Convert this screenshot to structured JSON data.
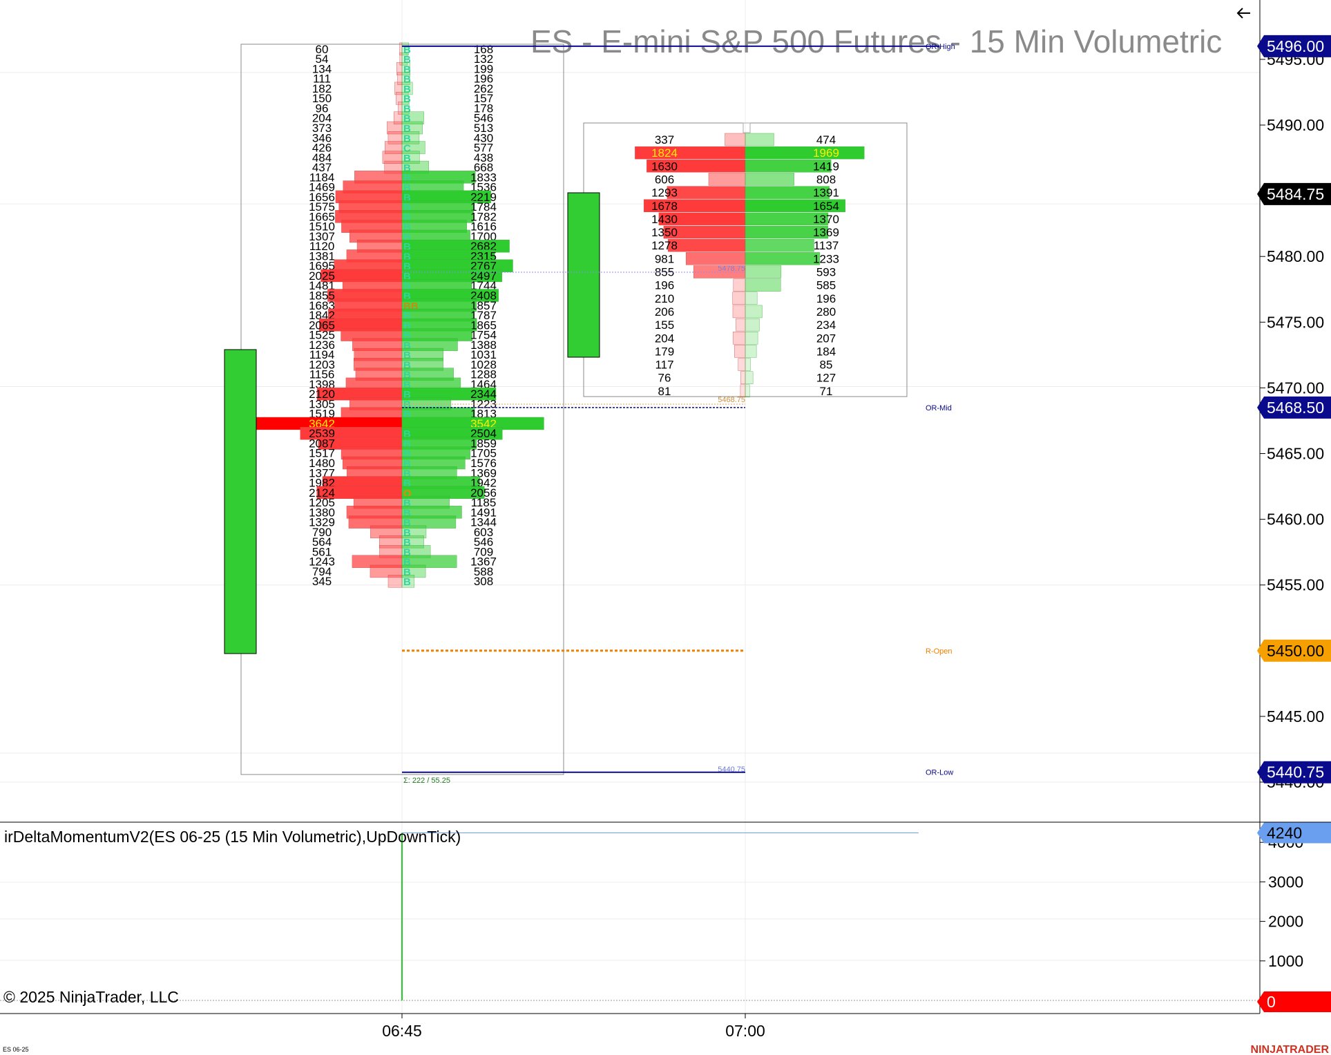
{
  "chart_title": "ES - E-mini S&P 500 Futures - 15 Min Volumetric",
  "indicator_label": "irDeltaMomentumV2(ES 06-25 (15 Min Volumetric),UpDownTick)",
  "copyright": "© 2025 NinjaTrader, LLC",
  "instrument_tag": "ES 06-25",
  "brand": "NINJATRADER",
  "back_icon": "left-arrow-icon",
  "price_axis": {
    "ticks": [
      "5495.00",
      "5490.00",
      "5480.00",
      "5475.00",
      "5470.00",
      "5465.00",
      "5460.00",
      "5455.00",
      "5445.00",
      "5440.00"
    ],
    "tick_prices": [
      5495,
      5490,
      5480,
      5475,
      5470,
      5465,
      5460,
      5455,
      5445,
      5440
    ],
    "tags": [
      {
        "label": "5496.00",
        "price": 5496.0,
        "bg": "#0a0a8c",
        "fg": "#ffffff"
      },
      {
        "label": "5484.75",
        "price": 5484.75,
        "bg": "#000000",
        "fg": "#ffffff"
      },
      {
        "label": "5468.50",
        "price": 5468.5,
        "bg": "#0a0a8c",
        "fg": "#ffffff"
      },
      {
        "label": "5450.00",
        "price": 5450.0,
        "bg": "#f5a000",
        "fg": "#000000"
      },
      {
        "label": "5440.75",
        "price": 5440.75,
        "bg": "#0a0a8c",
        "fg": "#ffffff"
      }
    ]
  },
  "time_axis": {
    "labels": [
      "06:45",
      "07:00"
    ]
  },
  "level_lines": [
    {
      "label": "OR-High",
      "price": 5496.0,
      "color": "#0a0a8c"
    },
    {
      "label": "OR-Mid",
      "price": 5468.5,
      "color": "#0a0a8c"
    },
    {
      "label": "R-Open",
      "price": 5450.0,
      "color": "#f08000"
    },
    {
      "label": "OR-Low",
      "price": 5440.75,
      "color": "#0a0a8c"
    }
  ],
  "bar1": {
    "summary": "Σ: 222 / 55.25",
    "poc_label": "5440.75",
    "rows": [
      {
        "bid": 60,
        "ask": 168,
        "m": "B"
      },
      {
        "bid": 54,
        "ask": 132,
        "m": "B"
      },
      {
        "bid": 134,
        "ask": 199,
        "m": "B"
      },
      {
        "bid": 111,
        "ask": 196,
        "m": "B"
      },
      {
        "bid": 182,
        "ask": 262,
        "m": "B"
      },
      {
        "bid": 150,
        "ask": 157,
        "m": "B"
      },
      {
        "bid": 96,
        "ask": 178,
        "m": "B"
      },
      {
        "bid": 204,
        "ask": 546,
        "m": "B"
      },
      {
        "bid": 373,
        "ask": 513,
        "m": "B"
      },
      {
        "bid": 346,
        "ask": 430,
        "m": "B"
      },
      {
        "bid": 426,
        "ask": 577,
        "m": "C"
      },
      {
        "bid": 484,
        "ask": 438,
        "m": "B"
      },
      {
        "bid": 437,
        "ask": 668,
        "m": "B"
      },
      {
        "bid": 1184,
        "ask": 1833,
        "m": "B"
      },
      {
        "bid": 1469,
        "ask": 1536,
        "m": "B"
      },
      {
        "bid": 1656,
        "ask": 2219,
        "m": "B"
      },
      {
        "bid": 1575,
        "ask": 1784,
        "m": "B"
      },
      {
        "bid": 1665,
        "ask": 1782,
        "m": "B"
      },
      {
        "bid": 1510,
        "ask": 1616,
        "m": "B"
      },
      {
        "bid": 1307,
        "ask": 1700,
        "m": "B"
      },
      {
        "bid": 1120,
        "ask": 2682,
        "m": "B"
      },
      {
        "bid": 1381,
        "ask": 2315,
        "m": "B"
      },
      {
        "bid": 1695,
        "ask": 2767,
        "m": "B"
      },
      {
        "bid": 2025,
        "ask": 2497,
        "m": "B"
      },
      {
        "bid": 1481,
        "ask": 1744,
        "m": "B"
      },
      {
        "bid": 1855,
        "ask": 2408,
        "m": "B"
      },
      {
        "bid": 1683,
        "ask": 1857,
        "m": "BB"
      },
      {
        "bid": 1842,
        "ask": 1787,
        "m": "B"
      },
      {
        "bid": 2065,
        "ask": 1865,
        "m": "B"
      },
      {
        "bid": 1525,
        "ask": 1754,
        "m": "B"
      },
      {
        "bid": 1236,
        "ask": 1388,
        "m": "B"
      },
      {
        "bid": 1194,
        "ask": 1031,
        "m": "B"
      },
      {
        "bid": 1203,
        "ask": 1028,
        "m": "B"
      },
      {
        "bid": 1156,
        "ask": 1288,
        "m": "B"
      },
      {
        "bid": 1398,
        "ask": 1464,
        "m": "B"
      },
      {
        "bid": 2120,
        "ask": 2344,
        "m": "B"
      },
      {
        "bid": 1305,
        "ask": 1223,
        "m": "B"
      },
      {
        "bid": 1519,
        "ask": 1813,
        "m": "B"
      },
      {
        "bid": 3642,
        "ask": 3542,
        "m": ""
      },
      {
        "bid": 2539,
        "ask": 2504,
        "m": "B"
      },
      {
        "bid": 2087,
        "ask": 1859,
        "m": "B"
      },
      {
        "bid": 1517,
        "ask": 1705,
        "m": "B"
      },
      {
        "bid": 1480,
        "ask": 1576,
        "m": "B"
      },
      {
        "bid": 1377,
        "ask": 1369,
        "m": "B"
      },
      {
        "bid": 1982,
        "ask": 1942,
        "m": "B"
      },
      {
        "bid": 2124,
        "ask": 2056,
        "m": "O"
      },
      {
        "bid": 1205,
        "ask": 1185,
        "m": "B"
      },
      {
        "bid": 1380,
        "ask": 1491,
        "m": "B"
      },
      {
        "bid": 1329,
        "ask": 1344,
        "m": "B"
      },
      {
        "bid": 790,
        "ask": 603,
        "m": "B"
      },
      {
        "bid": 564,
        "ask": 546,
        "m": "B"
      },
      {
        "bid": 561,
        "ask": 709,
        "m": "B"
      },
      {
        "bid": 1243,
        "ask": 1367,
        "m": "B"
      },
      {
        "bid": 794,
        "ask": 588,
        "m": "B"
      },
      {
        "bid": 345,
        "ask": 308,
        "m": "B"
      }
    ]
  },
  "bar2": {
    "poc_labels": [
      "5478.75",
      "5468.75"
    ],
    "rows": [
      {
        "bid": 337,
        "ask": 474
      },
      {
        "bid": 1824,
        "ask": 1969
      },
      {
        "bid": 1630,
        "ask": 1419
      },
      {
        "bid": 606,
        "ask": 808
      },
      {
        "bid": 1293,
        "ask": 1391
      },
      {
        "bid": 1678,
        "ask": 1654
      },
      {
        "bid": 1430,
        "ask": 1370
      },
      {
        "bid": 1350,
        "ask": 1369
      },
      {
        "bid": 1278,
        "ask": 1137
      },
      {
        "bid": 981,
        "ask": 1233
      },
      {
        "bid": 855,
        "ask": 593
      },
      {
        "bid": 196,
        "ask": 585
      },
      {
        "bid": 210,
        "ask": 196
      },
      {
        "bid": 206,
        "ask": 280
      },
      {
        "bid": 155,
        "ask": 234
      },
      {
        "bid": 204,
        "ask": 207
      },
      {
        "bid": 179,
        "ask": 184
      },
      {
        "bid": 117,
        "ask": 85
      },
      {
        "bid": 76,
        "ask": 127
      },
      {
        "bid": 81,
        "ask": 71
      }
    ]
  },
  "indicator_axis": {
    "ticks": [
      "4000",
      "3000",
      "2000",
      "1000"
    ],
    "tick_values": [
      4000,
      3000,
      2000,
      1000
    ],
    "tags": [
      {
        "label": "4240",
        "value": 4240,
        "bg": "#6a9ff0",
        "fg": "#000000"
      },
      {
        "label": "0",
        "value": 0,
        "bg": "#ff0000",
        "fg": "#ffffff"
      }
    ]
  },
  "colors": {
    "bid": "#ff3a3a",
    "ask": "#2ecc2e",
    "candle": "#32cd32",
    "marker": "#2fd6a0"
  }
}
